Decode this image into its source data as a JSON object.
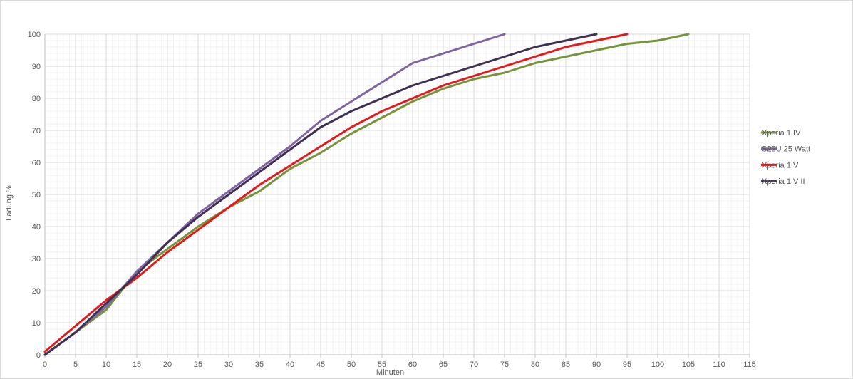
{
  "chart_data": {
    "type": "line",
    "title": "",
    "xlabel": "Minuten",
    "ylabel": "Ladung %",
    "xlim": [
      0,
      115
    ],
    "ylim": [
      0,
      100
    ],
    "x_ticks": [
      0,
      5,
      10,
      15,
      20,
      25,
      30,
      35,
      40,
      45,
      50,
      55,
      60,
      65,
      70,
      75,
      80,
      85,
      90,
      95,
      100,
      105,
      110,
      115
    ],
    "y_ticks": [
      0,
      10,
      20,
      30,
      40,
      50,
      60,
      70,
      80,
      90,
      100
    ],
    "grid": true,
    "legend_position": "right",
    "series": [
      {
        "name": "Xperia 1 IV",
        "color": "#77933c",
        "x": [
          0,
          5,
          10,
          15,
          20,
          25,
          30,
          35,
          40,
          45,
          50,
          55,
          60,
          65,
          70,
          75,
          80,
          85,
          90,
          95,
          100,
          105
        ],
        "y": [
          0,
          7,
          14,
          26,
          33,
          40,
          46,
          51,
          58,
          63,
          69,
          74,
          79,
          83,
          86,
          88,
          91,
          93,
          95,
          97,
          98,
          100
        ]
      },
      {
        "name": "S22U 25 Watt",
        "color": "#8064a2",
        "x": [
          0,
          5,
          10,
          15,
          20,
          25,
          30,
          35,
          40,
          45,
          50,
          55,
          60,
          65,
          70,
          75
        ],
        "y": [
          0,
          7,
          15,
          26,
          35,
          44,
          51,
          58,
          65,
          73,
          79,
          85,
          91,
          94,
          97,
          100
        ]
      },
      {
        "name": "Xperia 1 V",
        "color": "#e31a1c",
        "x": [
          0,
          5,
          10,
          15,
          20,
          25,
          30,
          35,
          40,
          45,
          50,
          55,
          60,
          65,
          70,
          75,
          80,
          85,
          90,
          95
        ],
        "y": [
          1,
          9,
          17,
          24,
          32,
          39,
          46,
          53,
          59,
          65,
          71,
          76,
          80,
          84,
          87,
          90,
          93,
          96,
          98,
          100
        ]
      },
      {
        "name": "Xperia 1 V II",
        "color": "#403152",
        "x": [
          0,
          5,
          10,
          15,
          20,
          25,
          30,
          35,
          40,
          45,
          50,
          55,
          60,
          65,
          70,
          75,
          80,
          85,
          90
        ],
        "y": [
          0,
          7,
          16,
          25,
          35,
          43,
          50,
          57,
          64,
          71,
          76,
          80,
          84,
          87,
          90,
          93,
          96,
          98,
          100
        ]
      }
    ]
  }
}
